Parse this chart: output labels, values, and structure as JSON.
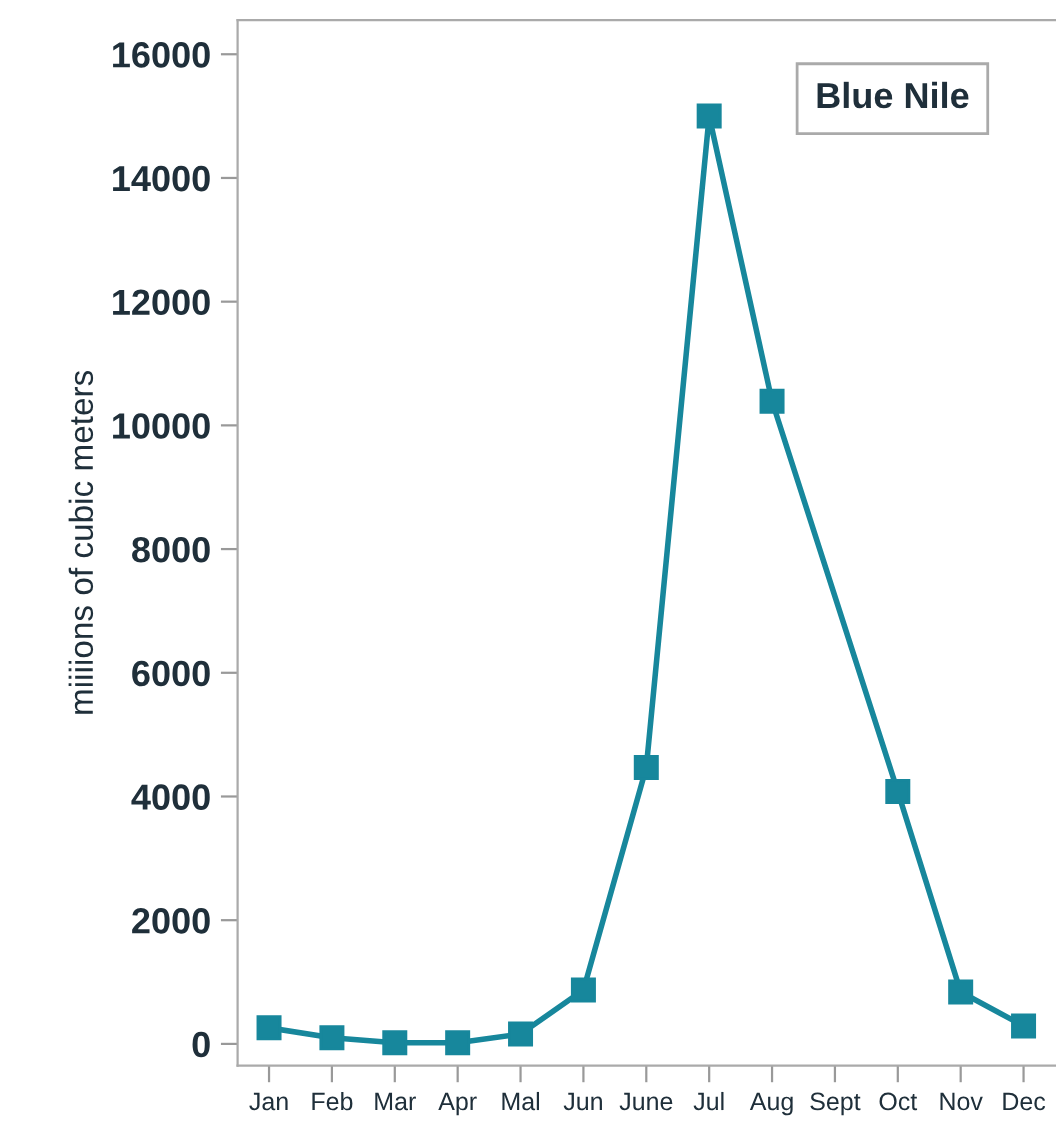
{
  "chart_data": {
    "type": "line",
    "ylabel": "miiiions of cubic meters",
    "categories": [
      "Jan",
      "Feb",
      "Mar",
      "Apr",
      "Mal",
      "Jun",
      "June",
      "Jul",
      "Aug",
      "Sept",
      "Oct",
      "Nov",
      "Dec"
    ],
    "series": [
      {
        "color": "#17879c",
        "values": [
          260,
          100,
          20,
          20,
          160,
          870,
          4470,
          15000,
          10390,
          null,
          4080,
          840,
          290
        ]
      }
    ],
    "ylim": [
      -350,
      16550
    ],
    "yticks": [
      0,
      2000,
      4000,
      6000,
      8000,
      10000,
      12000,
      14000,
      16000
    ],
    "grid": false,
    "marker": "square",
    "line_style": "solid",
    "legend": false,
    "annotations": [
      "Blue Nile"
    ]
  }
}
